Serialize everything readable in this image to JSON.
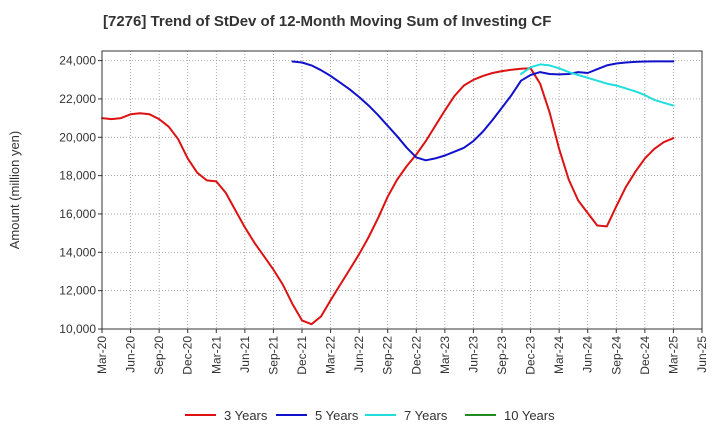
{
  "chart_data": {
    "type": "line",
    "title": "[7276]  Trend of StDev of 12-Month Moving Sum of Investing CF",
    "ylabel": "Amount (million yen)",
    "xlabel": "",
    "ylim": [
      10000,
      24500
    ],
    "y_ticks": [
      10000,
      12000,
      14000,
      16000,
      18000,
      20000,
      22000,
      24000
    ],
    "y_tick_labels": [
      "10,000",
      "12,000",
      "14,000",
      "16,000",
      "18,000",
      "20,000",
      "22,000",
      "24,000"
    ],
    "x_tick_labels": [
      "Mar-20",
      "Jun-20",
      "Sep-20",
      "Dec-20",
      "Mar-21",
      "Jun-21",
      "Sep-21",
      "Dec-21",
      "Mar-22",
      "Jun-22",
      "Sep-22",
      "Dec-22",
      "Mar-23",
      "Jun-23",
      "Sep-23",
      "Dec-23",
      "Mar-24",
      "Jun-24",
      "Sep-24",
      "Dec-24",
      "Mar-25",
      "Jun-25"
    ],
    "grid": true,
    "legend_position": "bottom",
    "series": [
      {
        "name": "3 Years",
        "color": "#dd1111",
        "x": [
          "Mar-20",
          "Apr-20",
          "May-20",
          "Jun-20",
          "Jul-20",
          "Aug-20",
          "Sep-20",
          "Oct-20",
          "Nov-20",
          "Dec-20",
          "Jan-21",
          "Feb-21",
          "Mar-21",
          "Apr-21",
          "May-21",
          "Jun-21",
          "Jul-21",
          "Aug-21",
          "Sep-21",
          "Oct-21",
          "Nov-21",
          "Dec-21",
          "Jan-22",
          "Feb-22",
          "Mar-22",
          "Apr-22",
          "May-22",
          "Jun-22",
          "Jul-22",
          "Aug-22",
          "Sep-22",
          "Oct-22",
          "Nov-22",
          "Dec-22",
          "Jan-23",
          "Feb-23",
          "Mar-23",
          "Apr-23",
          "May-23",
          "Jun-23",
          "Jul-23",
          "Aug-23",
          "Sep-23",
          "Oct-23",
          "Nov-23",
          "Dec-23",
          "Jan-24",
          "Feb-24",
          "Mar-24",
          "Apr-24",
          "May-24",
          "Jun-24",
          "Jul-24",
          "Aug-24",
          "Sep-24",
          "Oct-24",
          "Nov-24",
          "Dec-24",
          "Jan-25",
          "Feb-25",
          "Mar-25"
        ],
        "values": [
          21000,
          20950,
          21000,
          21200,
          21250,
          21200,
          20950,
          20550,
          19900,
          18900,
          18150,
          17750,
          17700,
          17100,
          16200,
          15300,
          14500,
          13800,
          13100,
          12300,
          11300,
          10450,
          10250,
          10650,
          11500,
          12300,
          13100,
          13900,
          14800,
          15800,
          16900,
          17800,
          18500,
          19100,
          19800,
          20600,
          21400,
          22150,
          22700,
          23000,
          23200,
          23350,
          23450,
          23520,
          23570,
          23600,
          22800,
          21300,
          19400,
          17800,
          16700,
          16050,
          15400,
          15350,
          16400,
          17400,
          18200,
          18900,
          19400,
          19750,
          19950
        ]
      },
      {
        "name": "5 Years",
        "color": "#1111cc",
        "x": [
          "Nov-21",
          "Dec-21",
          "Jan-22",
          "Feb-22",
          "Mar-22",
          "Apr-22",
          "May-22",
          "Jun-22",
          "Jul-22",
          "Aug-22",
          "Sep-22",
          "Oct-22",
          "Nov-22",
          "Dec-22",
          "Jan-23",
          "Feb-23",
          "Mar-23",
          "Apr-23",
          "May-23",
          "Jun-23",
          "Jul-23",
          "Aug-23",
          "Sep-23",
          "Oct-23",
          "Nov-23",
          "Dec-23",
          "Jan-24",
          "Feb-24",
          "Mar-24",
          "Apr-24",
          "May-24",
          "Jun-24",
          "Jul-24",
          "Aug-24",
          "Sep-24",
          "Oct-24",
          "Nov-24",
          "Dec-24",
          "Jan-25",
          "Feb-25",
          "Mar-25"
        ],
        "values": [
          23950,
          23900,
          23750,
          23500,
          23200,
          22850,
          22500,
          22100,
          21650,
          21150,
          20600,
          20050,
          19450,
          18950,
          18800,
          18900,
          19050,
          19250,
          19450,
          19800,
          20300,
          20900,
          21550,
          22200,
          22950,
          23250,
          23400,
          23300,
          23280,
          23300,
          23400,
          23350,
          23550,
          23750,
          23850,
          23900,
          23930,
          23950,
          23960,
          23960,
          23960
        ]
      },
      {
        "name": "7 Years",
        "color": "#22dddd",
        "x": [
          "Nov-23",
          "Dec-23",
          "Jan-24",
          "Feb-24",
          "Mar-24",
          "Apr-24",
          "May-24",
          "Jun-24",
          "Jul-24",
          "Aug-24",
          "Sep-24",
          "Oct-24",
          "Nov-24",
          "Dec-24",
          "Jan-25",
          "Feb-25",
          "Mar-25"
        ],
        "values": [
          23300,
          23650,
          23800,
          23750,
          23600,
          23400,
          23250,
          23100,
          22950,
          22800,
          22700,
          22550,
          22400,
          22200,
          21950,
          21800,
          21650
        ]
      },
      {
        "name": "10 Years",
        "color": "#228822",
        "x": [],
        "values": []
      }
    ]
  }
}
